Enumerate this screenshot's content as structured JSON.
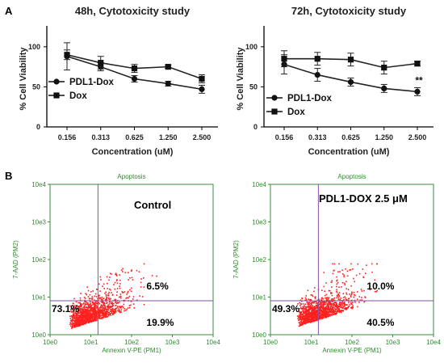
{
  "panels": {
    "a_label": "A",
    "b_label": "B"
  },
  "chart_data": [
    {
      "type": "line",
      "title": "48h, Cytotoxicity study",
      "xlabel": "Concentration (uM)",
      "ylabel": "% Cell Viability",
      "categories": [
        "0.156",
        "0.313",
        "0.625",
        "1.250",
        "2.500"
      ],
      "ylim": [
        0,
        120
      ],
      "yticks": [
        "0",
        "50",
        "100"
      ],
      "legend_position": "center-left",
      "series": [
        {
          "name": "PDL1-Dox",
          "marker": "circle",
          "values": [
            88,
            75,
            60,
            54,
            47
          ],
          "errors": [
            17,
            5,
            4,
            3,
            5
          ]
        },
        {
          "name": "Dox",
          "marker": "square",
          "values": [
            90,
            80,
            73,
            75,
            60
          ],
          "errors": [
            6,
            8,
            5,
            2,
            5
          ]
        }
      ],
      "annotations": []
    },
    {
      "type": "line",
      "title": "72h, Cytotoxicity study",
      "xlabel": "Concentration (uM)",
      "ylabel": "% Cell Viability",
      "categories": [
        "0.156",
        "0.313",
        "0.625",
        "1.250",
        "2.500"
      ],
      "ylim": [
        0,
        120
      ],
      "yticks": [
        "0",
        "50",
        "100"
      ],
      "legend_position": "bottom-left",
      "series": [
        {
          "name": "PDL1-Dox",
          "marker": "circle",
          "values": [
            78,
            65,
            56,
            48,
            44
          ],
          "errors": [
            12,
            8,
            5,
            5,
            5
          ]
        },
        {
          "name": "Dox",
          "marker": "square",
          "values": [
            85,
            85,
            84,
            74,
            79
          ],
          "errors": [
            10,
            8,
            8,
            8,
            3
          ]
        }
      ],
      "annotations": [
        {
          "text": "**",
          "x": "2.500",
          "y": 54
        }
      ]
    },
    {
      "type": "scatter",
      "title": "Apoptosis",
      "xlabel": "Annexin V-PE (PM1)",
      "ylabel": "7-AAD (PM2)",
      "scale": "log",
      "xlim": [
        1,
        10000
      ],
      "ylim": [
        1,
        10000
      ],
      "xticks": [
        "10e0",
        "10e1",
        "10e2",
        "10e3",
        "10e4"
      ],
      "yticks": [
        "10e0",
        "10e1",
        "10e2",
        "10e3",
        "10e4"
      ],
      "gate": {
        "x": 15,
        "y": 8
      },
      "label": "Control",
      "quadrants": {
        "upper_left": "",
        "upper_right": "6.5%",
        "lower_left": "73.1%",
        "lower_right": "19.9%"
      },
      "point_color": "#ff2020",
      "gate_color": "#8a4fa8"
    },
    {
      "type": "scatter",
      "title": "Apoptosis",
      "xlabel": "Annexin V-PE (PM1)",
      "ylabel": "7-AAD (PM2)",
      "scale": "log",
      "xlim": [
        1,
        10000
      ],
      "ylim": [
        1,
        10000
      ],
      "xticks": [
        "10e0",
        "10e1",
        "10e2",
        "10e3",
        "10e4"
      ],
      "yticks": [
        "10e0",
        "10e1",
        "10e2",
        "10e3",
        "10e4"
      ],
      "gate": {
        "x": 15,
        "y": 8
      },
      "label": "PDL1-DOX 2.5 μM",
      "quadrants": {
        "upper_left": "",
        "upper_right": "10.0%",
        "lower_left": "49.3%",
        "lower_right": "40.5%"
      },
      "point_color": "#ff2020",
      "gate_color": "#8a4fa8"
    }
  ]
}
